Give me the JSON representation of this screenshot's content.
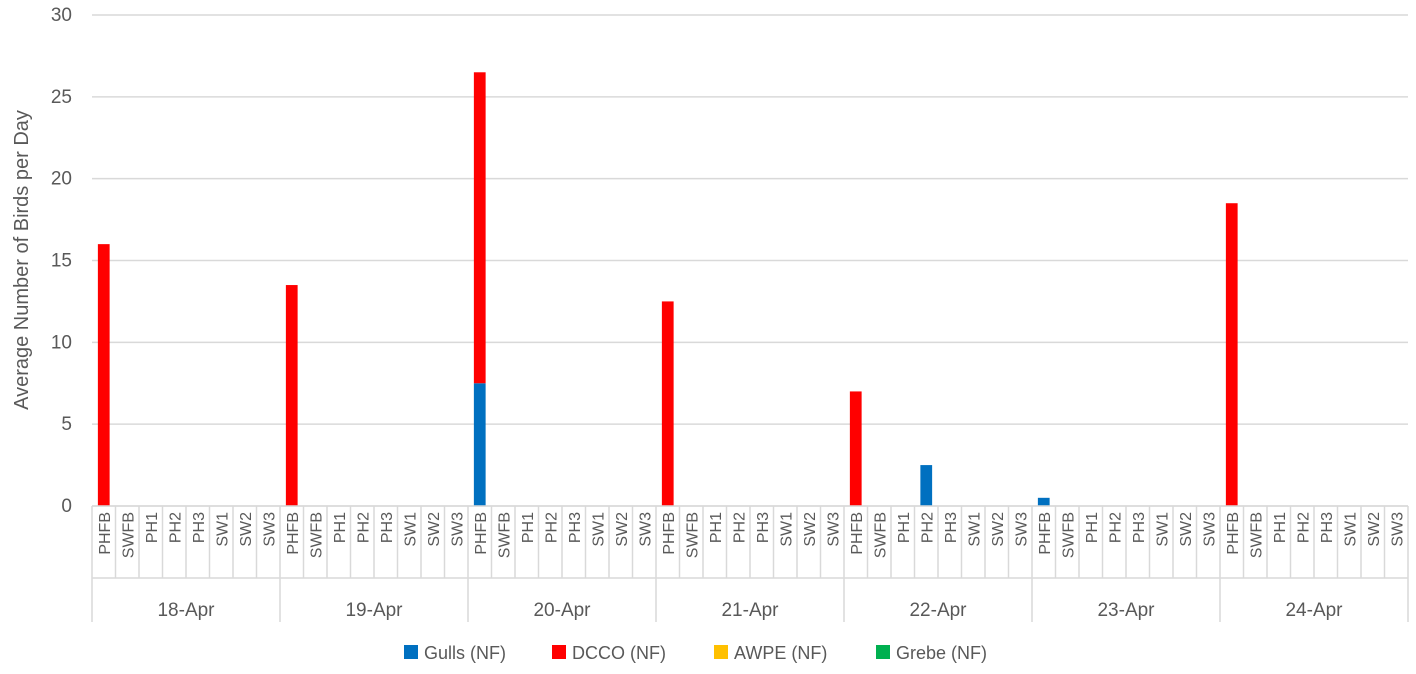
{
  "chart_data": {
    "type": "bar",
    "stacked": true,
    "ylabel": "Average Number of Birds per Day",
    "ylim": [
      0,
      30
    ],
    "yticks": [
      0,
      5,
      10,
      15,
      20,
      25,
      30
    ],
    "grid": true,
    "legend_position": "bottom",
    "groups": [
      "18-Apr",
      "19-Apr",
      "20-Apr",
      "21-Apr",
      "22-Apr",
      "23-Apr",
      "24-Apr"
    ],
    "subcategories": [
      "PHFB",
      "SWFB",
      "PH1",
      "PH2",
      "PH3",
      "SW1",
      "SW2",
      "SW3"
    ],
    "series": [
      {
        "name": "Gulls (NF)",
        "color": "#0070C0",
        "values": [
          [
            0,
            0,
            0,
            0,
            0,
            0,
            0,
            0
          ],
          [
            0,
            0,
            0,
            0,
            0,
            0,
            0,
            0
          ],
          [
            7.5,
            0,
            0,
            0,
            0,
            0,
            0,
            0
          ],
          [
            0,
            0,
            0,
            0,
            0,
            0,
            0,
            0
          ],
          [
            0,
            0,
            0,
            2.5,
            0,
            0,
            0,
            0
          ],
          [
            0.5,
            0,
            0,
            0,
            0,
            0,
            0,
            0
          ],
          [
            0,
            0,
            0,
            0,
            0,
            0,
            0,
            0
          ]
        ]
      },
      {
        "name": "DCCO  (NF)",
        "color": "#FF0000",
        "values": [
          [
            16,
            0,
            0,
            0,
            0,
            0,
            0,
            0
          ],
          [
            13.5,
            0,
            0,
            0,
            0,
            0,
            0,
            0
          ],
          [
            19,
            0,
            0,
            0,
            0,
            0,
            0,
            0
          ],
          [
            12.5,
            0,
            0,
            0,
            0,
            0,
            0,
            0
          ],
          [
            7,
            0,
            0,
            0,
            0,
            0,
            0,
            0
          ],
          [
            0,
            0,
            0,
            0,
            0,
            0,
            0,
            0
          ],
          [
            18.5,
            0,
            0,
            0,
            0,
            0,
            0,
            0
          ]
        ]
      },
      {
        "name": "AWPE (NF)",
        "color": "#FFC000",
        "values": [
          [
            0,
            0,
            0,
            0,
            0,
            0,
            0,
            0
          ],
          [
            0,
            0,
            0,
            0,
            0,
            0,
            0,
            0
          ],
          [
            0,
            0,
            0,
            0,
            0,
            0,
            0,
            0
          ],
          [
            0,
            0,
            0,
            0,
            0,
            0,
            0,
            0
          ],
          [
            0,
            0,
            0,
            0,
            0,
            0,
            0,
            0
          ],
          [
            0,
            0,
            0,
            0,
            0,
            0,
            0,
            0
          ],
          [
            0,
            0,
            0,
            0,
            0,
            0,
            0,
            0
          ]
        ]
      },
      {
        "name": "Grebe (NF)",
        "color": "#00B050",
        "values": [
          [
            0,
            0,
            0,
            0,
            0,
            0,
            0,
            0
          ],
          [
            0,
            0,
            0,
            0,
            0,
            0,
            0,
            0
          ],
          [
            0,
            0,
            0,
            0,
            0,
            0,
            0,
            0
          ],
          [
            0,
            0,
            0,
            0,
            0,
            0,
            0,
            0
          ],
          [
            0,
            0,
            0,
            0,
            0,
            0,
            0,
            0
          ],
          [
            0,
            0,
            0,
            0,
            0,
            0,
            0,
            0
          ],
          [
            0,
            0,
            0,
            0,
            0,
            0,
            0,
            0
          ]
        ]
      }
    ]
  }
}
